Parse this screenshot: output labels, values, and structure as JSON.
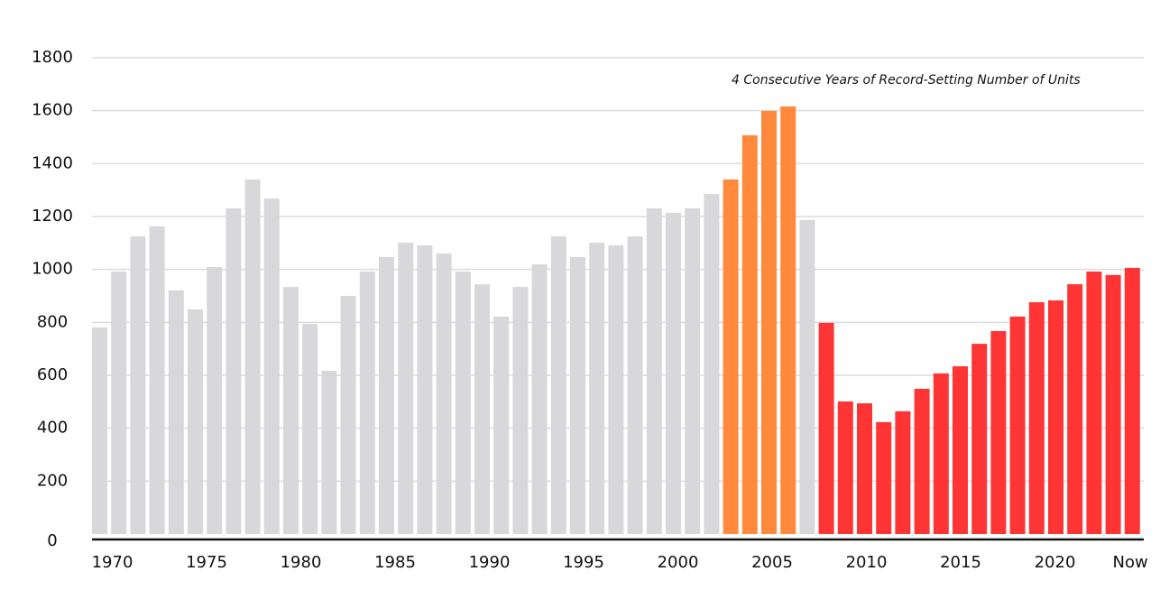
{
  "chart_data": {
    "type": "bar",
    "annotation": "4 Consecutive Years of Record-Setting Number of Units",
    "categories": [
      "1970",
      null,
      null,
      null,
      null,
      "1975",
      null,
      null,
      null,
      null,
      "1980",
      null,
      null,
      null,
      null,
      "1985",
      null,
      null,
      null,
      null,
      "1990",
      null,
      null,
      null,
      null,
      "1995",
      null,
      null,
      null,
      null,
      "2000",
      null,
      null,
      null,
      null,
      "2005",
      null,
      null,
      null,
      null,
      "2010",
      null,
      null,
      null,
      null,
      "2015",
      null,
      null,
      null,
      null,
      "2020",
      null,
      null,
      null,
      "Now"
    ],
    "values": [
      781,
      992,
      1125,
      1163,
      921,
      849,
      1009,
      1231,
      1340,
      1268,
      934,
      794,
      617,
      900,
      992,
      1047,
      1101,
      1091,
      1060,
      992,
      944,
      822,
      934,
      1019,
      1125,
      1047,
      1101,
      1091,
      1125,
      1231,
      1214,
      1231,
      1285,
      1340,
      1507,
      1599,
      1616,
      1187,
      798,
      501,
      494,
      423,
      464,
      549,
      607,
      634,
      719,
      767,
      822,
      876,
      883,
      944,
      992,
      979,
      1006
    ],
    "colors": [
      "#d8d8da",
      "#d8d8da",
      "#d8d8da",
      "#d8d8da",
      "#d8d8da",
      "#d8d8da",
      "#d8d8da",
      "#d8d8da",
      "#d8d8da",
      "#d8d8da",
      "#d8d8da",
      "#d8d8da",
      "#d8d8da",
      "#d8d8da",
      "#d8d8da",
      "#d8d8da",
      "#d8d8da",
      "#d8d8da",
      "#d8d8da",
      "#d8d8da",
      "#d8d8da",
      "#d8d8da",
      "#d8d8da",
      "#d8d8da",
      "#d8d8da",
      "#d8d8da",
      "#d8d8da",
      "#d8d8da",
      "#d8d8da",
      "#d8d8da",
      "#d8d8da",
      "#d8d8da",
      "#d8d8da",
      "#ff8a3d",
      "#ff8a3d",
      "#ff8a3d",
      "#ff8a3d",
      "#d8d8da",
      "#ff3535",
      "#ff3535",
      "#ff3535",
      "#ff3535",
      "#ff3535",
      "#ff3535",
      "#ff3535",
      "#ff3535",
      "#ff3535",
      "#ff3535",
      "#ff3535",
      "#ff3535",
      "#ff3535",
      "#ff3535",
      "#ff3535",
      "#ff3535",
      "#ff3535"
    ],
    "ylim": [
      0,
      1800
    ],
    "yticks": [
      0,
      200,
      400,
      600,
      800,
      1000,
      1200,
      1400,
      1600,
      1800
    ],
    "grid": true
  }
}
